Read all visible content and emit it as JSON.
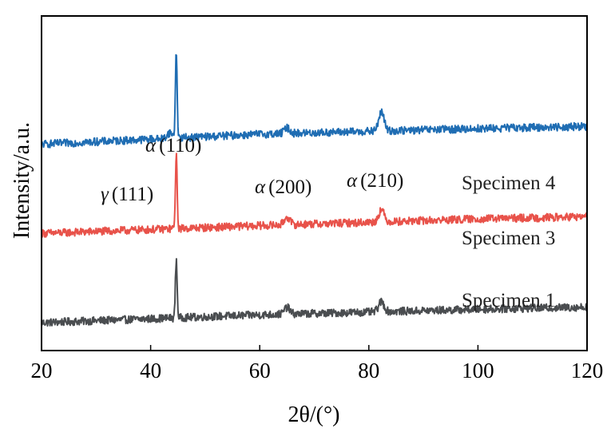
{
  "chart_data": {
    "type": "line",
    "xlabel": "2θ/(°)",
    "ylabel": "Intensity/a.u.",
    "xlim": [
      20,
      120
    ],
    "xticks": [
      20,
      40,
      60,
      80,
      100,
      120
    ],
    "yticks_shown": false,
    "grid": false,
    "series": [
      {
        "name": "Specimen 1",
        "color": "#4a4d50",
        "baseline": [
          [
            20,
            0.0
          ],
          [
            60,
            0.07
          ],
          [
            100,
            0.12
          ],
          [
            120,
            0.14
          ]
        ],
        "peaks": [
          {
            "x": 44.7,
            "height": 0.52
          },
          {
            "x": 65.0,
            "height": 0.06
          },
          {
            "x": 82.3,
            "height": 0.09
          }
        ]
      },
      {
        "name": "Specimen 3",
        "color": "#e8524a",
        "baseline": [
          [
            20,
            0.8
          ],
          [
            60,
            0.87
          ],
          [
            100,
            0.93
          ],
          [
            120,
            0.95
          ]
        ],
        "peaks": [
          {
            "x": 44.7,
            "height": 0.65
          },
          {
            "x": 65.0,
            "height": 0.07
          },
          {
            "x": 82.3,
            "height": 0.11
          }
        ]
      },
      {
        "name": "Specimen 4",
        "color": "#1f6db3",
        "baseline": [
          [
            20,
            1.6
          ],
          [
            60,
            1.69
          ],
          [
            100,
            1.74
          ],
          [
            120,
            1.76
          ]
        ],
        "peaks": [
          {
            "x": 43.5,
            "height": 0.05
          },
          {
            "x": 44.7,
            "height": 0.77
          },
          {
            "x": 65.0,
            "height": 0.05
          },
          {
            "x": 82.3,
            "height": 0.17
          }
        ]
      }
    ],
    "annotations": [
      {
        "greek": "γ",
        "hkl": "(111)"
      },
      {
        "greek": "α",
        "hkl": "(110)"
      },
      {
        "greek": "α",
        "hkl": "(200)"
      },
      {
        "greek": "α",
        "hkl": "(210)"
      }
    ]
  }
}
